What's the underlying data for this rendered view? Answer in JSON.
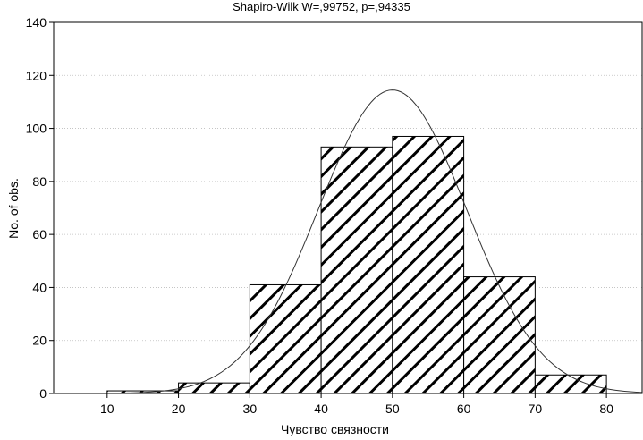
{
  "chart_data": {
    "type": "bar",
    "title": "Shapiro-Wilk W=,99752, p=,94335",
    "xlabel": "Чувство связности",
    "ylabel": "No. of obs.",
    "bins": [
      {
        "x0": 10,
        "x1": 20,
        "count": 1
      },
      {
        "x0": 20,
        "x1": 30,
        "count": 4
      },
      {
        "x0": 30,
        "x1": 40,
        "count": 41
      },
      {
        "x0": 40,
        "x1": 50,
        "count": 93
      },
      {
        "x0": 50,
        "x1": 60,
        "count": 97
      },
      {
        "x0": 60,
        "x1": 70,
        "count": 44
      },
      {
        "x0": 70,
        "x1": 80,
        "count": 7
      }
    ],
    "xlim": [
      2.5,
      85
    ],
    "ylim": [
      0,
      140
    ],
    "xticks": [
      "10",
      "20",
      "30",
      "40",
      "50",
      "60",
      "70",
      "80"
    ],
    "yticks": [
      "0",
      "20",
      "40",
      "60",
      "80",
      "100",
      "120",
      "140"
    ],
    "normal_curve": {
      "mean": 50,
      "peak": 114.5,
      "sd": 10.4
    },
    "grid": "horizontal dotted",
    "fill_pattern": "diagonal-hatch"
  }
}
